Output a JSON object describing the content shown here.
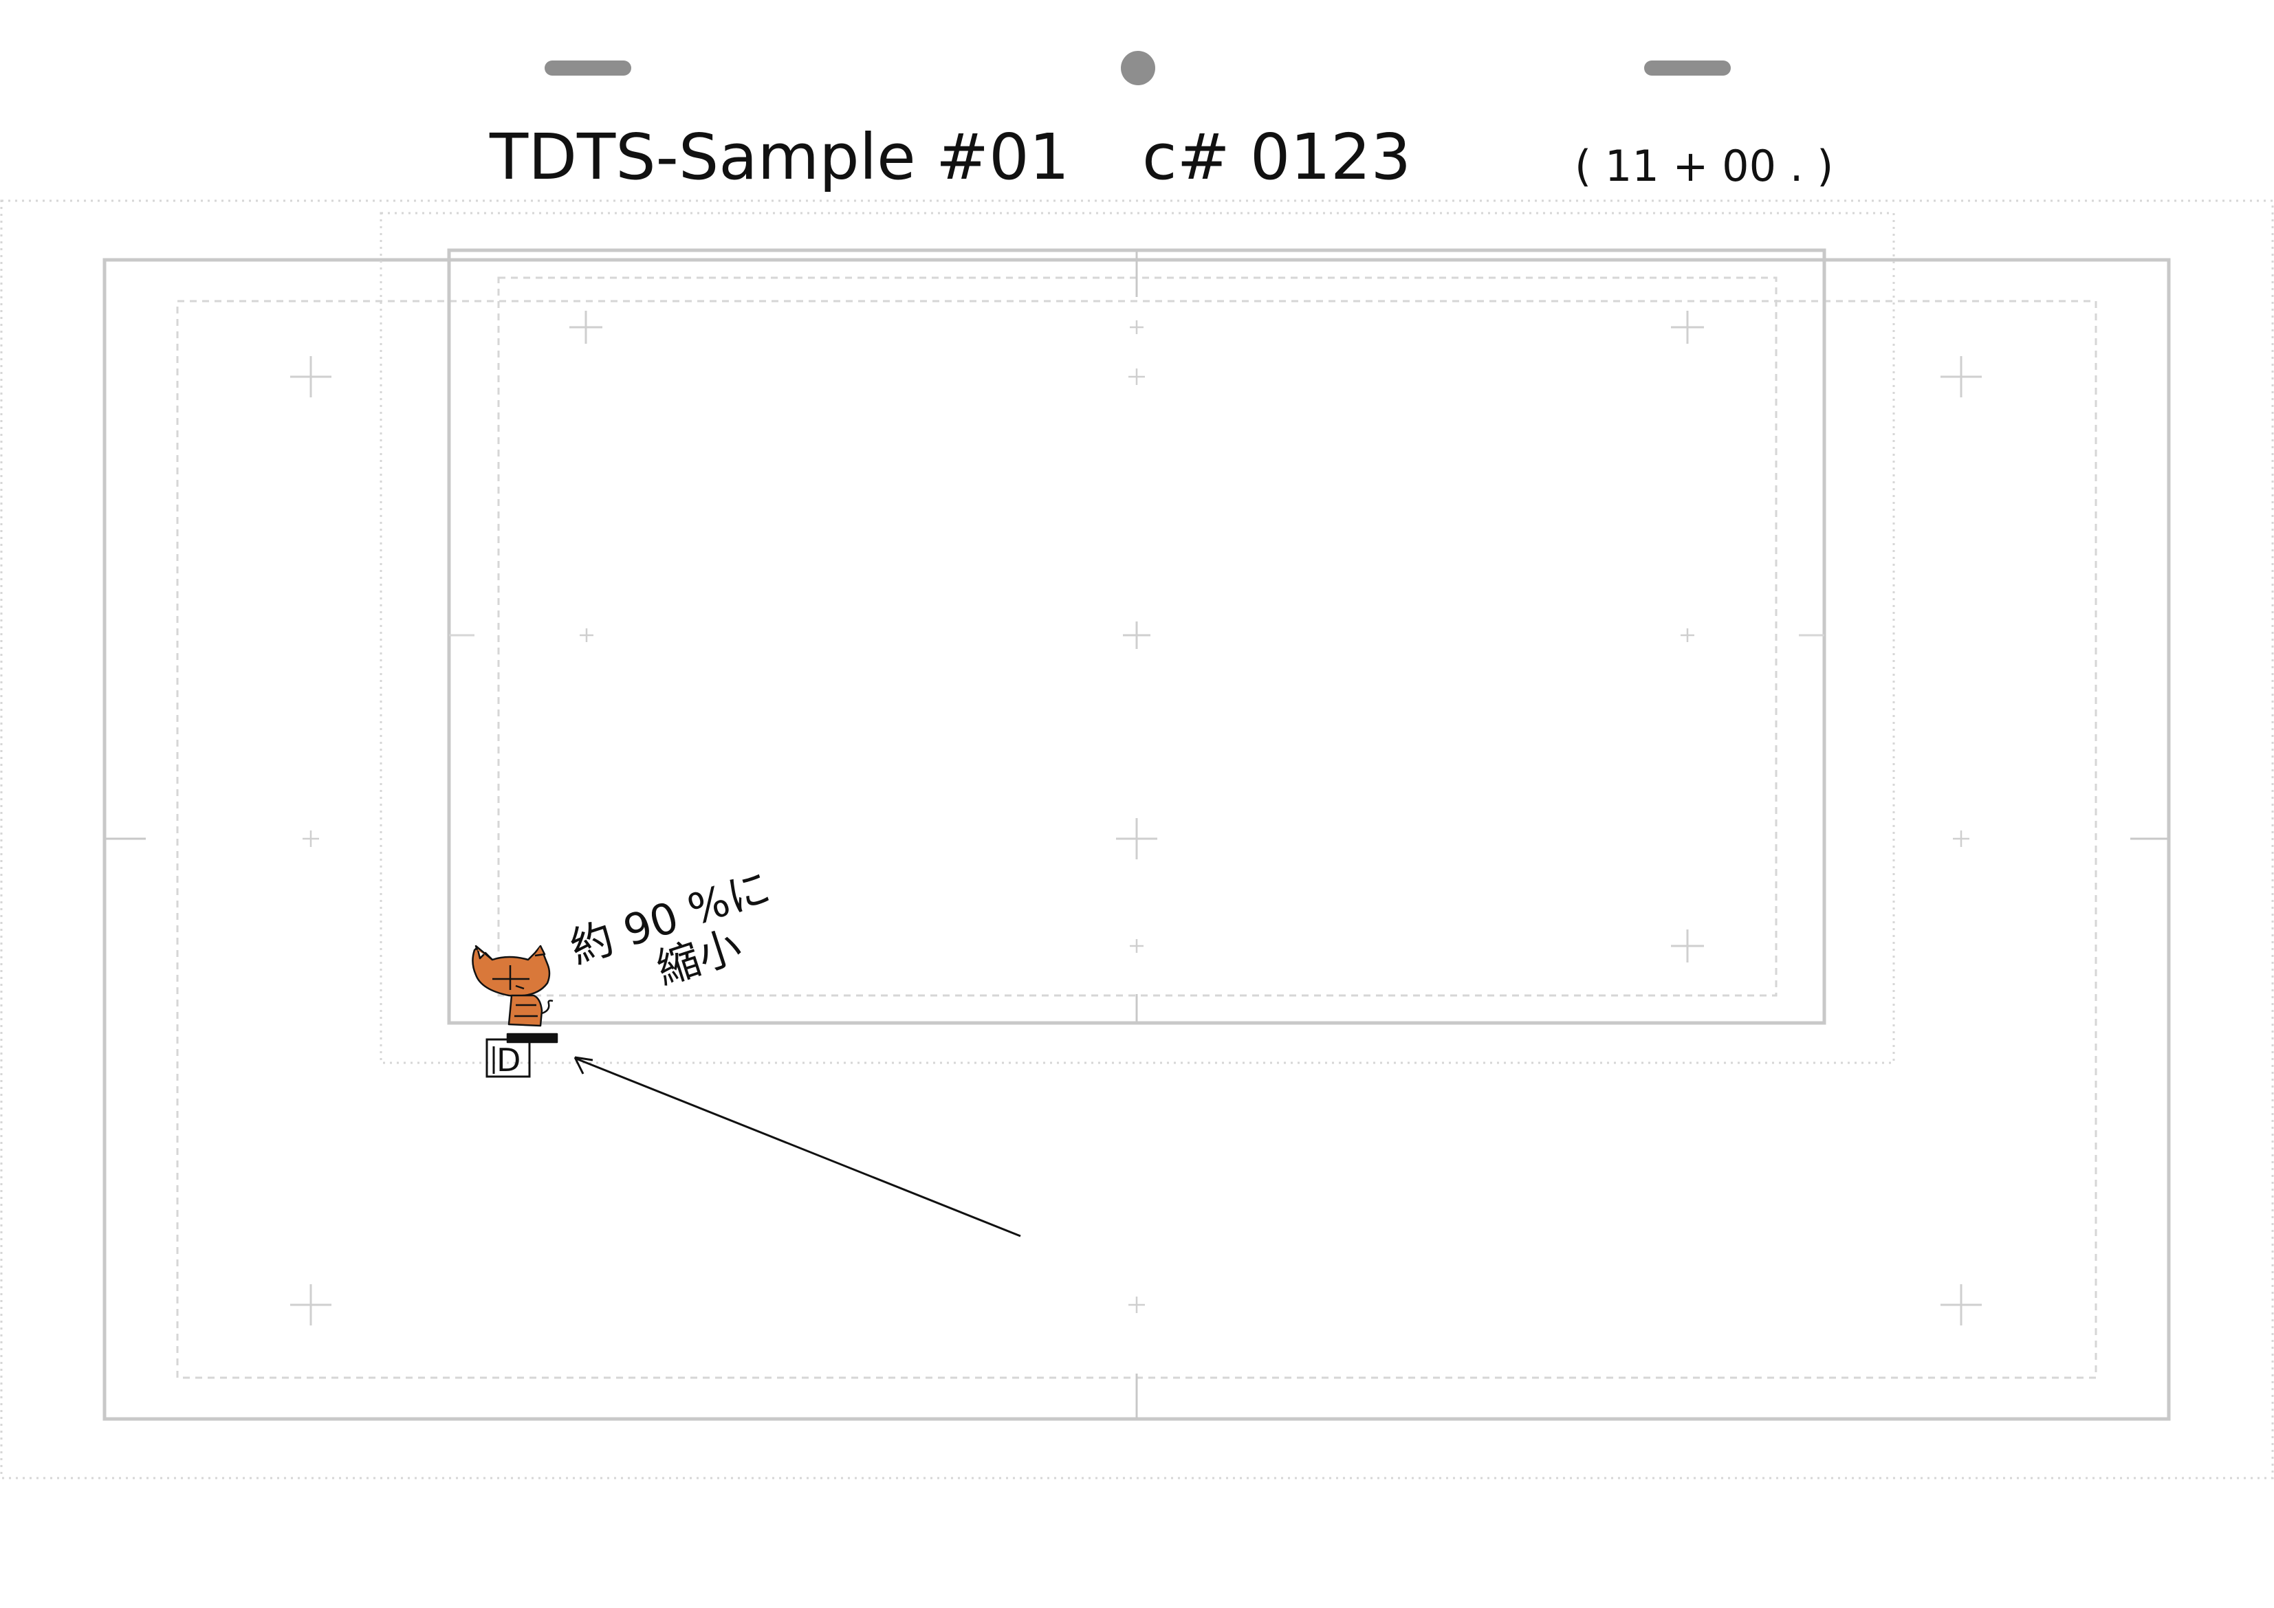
{
  "header": {
    "title": "TDTS-Sample #01",
    "cut": "c# 0123",
    "duration": "( 11 + 00 . )"
  },
  "annotation": {
    "line1": "約 90 %に",
    "line2": "縮小",
    "marker": "D"
  },
  "colors": {
    "frame_line": "#c8c8c8",
    "guide_dotted": "#d6d6d6",
    "cross": "#cfcfcf",
    "peg": "#8e8e8e",
    "cat_fill": "#d9783a",
    "ink": "#111111"
  },
  "icons": {
    "peg_left": "peg-slot",
    "peg_center": "peg-hole",
    "peg_right": "peg-slot",
    "character": "cat-sketch-icon",
    "arrow": "arrow-icon"
  }
}
